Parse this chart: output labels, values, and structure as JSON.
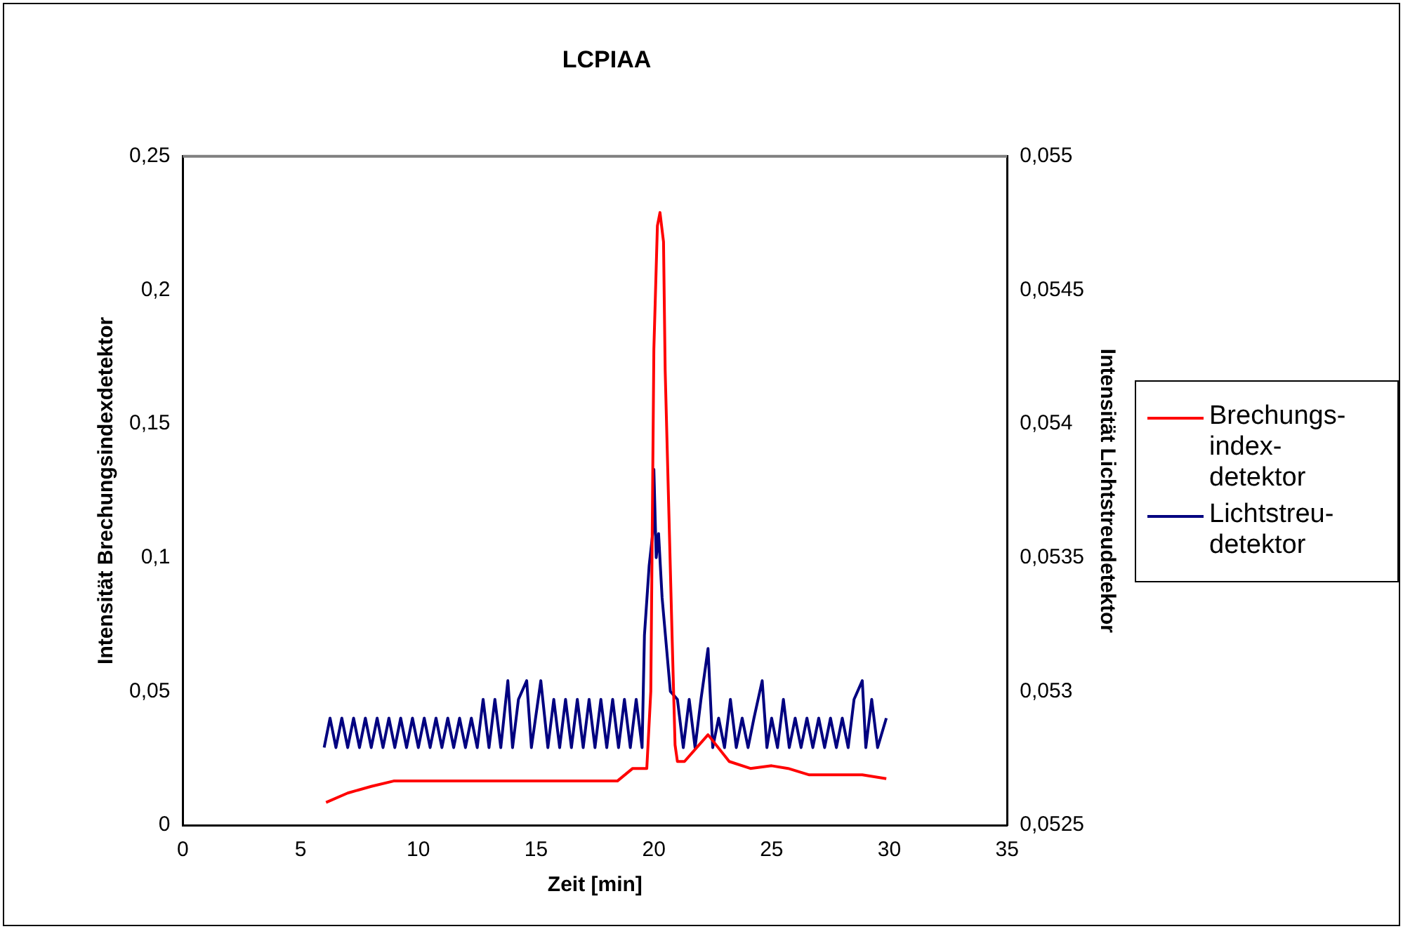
{
  "chart_data": {
    "type": "line",
    "title": "LCPIAA",
    "xlabel": "Zeit [min]",
    "ylabel": "Intensität Brechungsindexdetektor",
    "y2label": "Intensität Lichtstreudetektor",
    "legend": "right",
    "marker": "none",
    "line_style": "solid",
    "xlim": [
      0,
      35
    ],
    "xticks": [
      0,
      5,
      10,
      15,
      20,
      25,
      30,
      35
    ],
    "ylim": [
      0,
      0.25
    ],
    "yticks": [
      0,
      {
        "value": 0.05,
        "label": "0,05"
      },
      {
        "value": 0.1,
        "label": "0,1"
      },
      {
        "value": 0.15,
        "label": "0,15"
      },
      {
        "value": 0.2,
        "label": "0,2"
      },
      {
        "value": 0.25,
        "label": "0,25"
      }
    ],
    "y2lim": [
      0.0525,
      0.055
    ],
    "y2ticks": [
      {
        "value": 0.0525,
        "label": "0,0525"
      },
      {
        "value": 0.053,
        "label": "0,053"
      },
      {
        "value": 0.0535,
        "label": "0,0535"
      },
      {
        "value": 0.054,
        "label": "0,054"
      },
      {
        "value": 0.0545,
        "label": "0,0545"
      },
      {
        "value": 0.055,
        "label": "0,055"
      }
    ],
    "series": [
      {
        "name": "Brechungs-index-detektor",
        "color": "#ff0000",
        "x": [
          6.08,
          7,
          8,
          8.95,
          18.45,
          19.1,
          19.7,
          19.87,
          20.0,
          20.15,
          20.26,
          20.41,
          20.48,
          20.64,
          20.78,
          20.9,
          21.0,
          21.3,
          22.3,
          23.2,
          24.1,
          25.0,
          25.7,
          26.6,
          28.85,
          29.87
        ],
        "values": [
          0.0085,
          0.012,
          0.0145,
          0.0165,
          0.0165,
          0.0212,
          0.0212,
          0.05,
          0.178,
          0.224,
          0.229,
          0.218,
          0.17,
          0.116,
          0.0686,
          0.03,
          0.0238,
          0.0238,
          0.0338,
          0.0238,
          0.0212,
          0.0222,
          0.0212,
          0.0188,
          0.0188,
          0.0174
        ]
      },
      {
        "name": "Lichtstreu-detektor",
        "color": "#000080",
        "axis": "y2",
        "x": [
          6,
          6.25,
          6.5,
          6.75,
          7,
          7.25,
          7.5,
          7.75,
          8,
          8.25,
          8.5,
          8.75,
          9,
          9.25,
          9.5,
          9.75,
          10,
          10.25,
          10.5,
          10.75,
          11,
          11.25,
          11.5,
          11.75,
          12,
          12.25,
          12.5,
          12.75,
          13,
          13.25,
          13.5,
          13.8,
          14,
          14.25,
          14.6,
          14.8,
          15.2,
          15.5,
          15.75,
          16,
          16.25,
          16.5,
          16.75,
          17,
          17.25,
          17.5,
          17.75,
          18,
          18.25,
          18.5,
          18.75,
          19,
          19.25,
          19.5,
          19.6,
          19.8,
          19.95,
          20.0,
          20.1,
          20.2,
          20.35,
          20.5,
          20.7,
          21.0,
          21.25,
          21.5,
          21.75,
          22,
          22.3,
          22.5,
          22.75,
          23,
          23.25,
          23.5,
          23.75,
          24,
          24.25,
          24.6,
          24.8,
          25,
          25.25,
          25.5,
          25.75,
          26,
          26.25,
          26.5,
          26.75,
          27,
          27.25,
          27.5,
          27.75,
          28,
          28.25,
          28.5,
          28.85,
          29,
          29.25,
          29.5,
          29.87
        ],
        "values": [
          0.05279,
          0.0529,
          0.05279,
          0.0529,
          0.05279,
          0.0529,
          0.05279,
          0.0529,
          0.05279,
          0.0529,
          0.05279,
          0.0529,
          0.05279,
          0.0529,
          0.05279,
          0.0529,
          0.05279,
          0.0529,
          0.05279,
          0.0529,
          0.05279,
          0.0529,
          0.05279,
          0.0529,
          0.05279,
          0.0529,
          0.05279,
          0.05297,
          0.05279,
          0.05297,
          0.05279,
          0.05304,
          0.05279,
          0.05297,
          0.05304,
          0.05279,
          0.05304,
          0.05279,
          0.05297,
          0.05279,
          0.05297,
          0.05279,
          0.05297,
          0.05279,
          0.05297,
          0.05279,
          0.05297,
          0.05279,
          0.05297,
          0.05279,
          0.05297,
          0.05279,
          0.05297,
          0.05279,
          0.05321,
          0.05347,
          0.05359,
          0.05383,
          0.0535,
          0.05359,
          0.05335,
          0.0532,
          0.053,
          0.05297,
          0.05279,
          0.05297,
          0.05279,
          0.05297,
          0.05316,
          0.05279,
          0.0529,
          0.05279,
          0.05297,
          0.05279,
          0.0529,
          0.05279,
          0.0529,
          0.05304,
          0.05279,
          0.0529,
          0.05279,
          0.05297,
          0.05279,
          0.0529,
          0.05279,
          0.0529,
          0.05279,
          0.0529,
          0.05279,
          0.0529,
          0.05279,
          0.0529,
          0.05279,
          0.05297,
          0.05304,
          0.05279,
          0.05297,
          0.05279,
          0.0529
        ]
      }
    ]
  }
}
